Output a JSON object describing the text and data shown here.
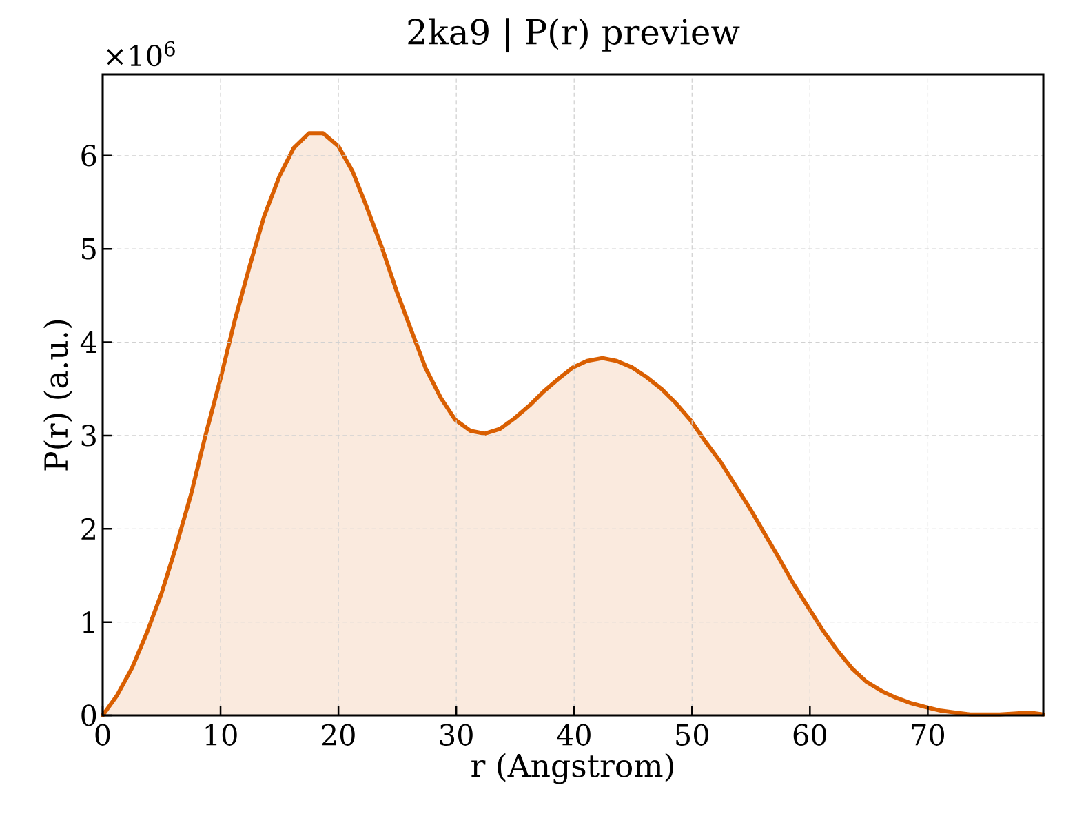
{
  "chart_data": {
    "type": "area",
    "title": "2ka9 | P(r) preview",
    "xlabel": "r (Angstrom)",
    "ylabel": "P(r) (a.u.)",
    "annotations": [
      "×10$^{6}$"
    ],
    "x": [
      0,
      1.2,
      2.5,
      3.7,
      5.0,
      6.2,
      7.5,
      8.7,
      10.0,
      11.2,
      12.5,
      13.7,
      15.0,
      16.2,
      17.5,
      18.7,
      20.0,
      21.2,
      22.4,
      23.7,
      24.9,
      26.2,
      27.4,
      28.7,
      29.9,
      31.2,
      32.4,
      33.7,
      34.9,
      36.2,
      37.4,
      38.7,
      39.9,
      41.1,
      42.4,
      43.6,
      44.9,
      46.1,
      47.4,
      48.6,
      49.9,
      51.1,
      52.4,
      53.6,
      54.9,
      56.1,
      57.4,
      58.6,
      59.9,
      61.1,
      62.3,
      63.6,
      64.8,
      66.1,
      67.3,
      68.6,
      69.8,
      71.1,
      72.3,
      73.6,
      74.8,
      76.1,
      77.3,
      78.6,
      79.8
    ],
    "values": [
      0,
      0.21,
      0.51,
      0.87,
      1.31,
      1.8,
      2.37,
      2.99,
      3.61,
      4.23,
      4.83,
      5.35,
      5.78,
      6.08,
      6.24,
      6.24,
      6.1,
      5.83,
      5.45,
      5.01,
      4.56,
      4.12,
      3.72,
      3.4,
      3.17,
      3.05,
      3.02,
      3.07,
      3.18,
      3.32,
      3.47,
      3.61,
      3.73,
      3.8,
      3.83,
      3.8,
      3.73,
      3.63,
      3.5,
      3.35,
      3.16,
      2.94,
      2.72,
      2.48,
      2.22,
      1.96,
      1.68,
      1.41,
      1.15,
      0.91,
      0.7,
      0.5,
      0.36,
      0.26,
      0.19,
      0.13,
      0.09,
      0.05,
      0.03,
      0.01,
      0.01,
      0.01,
      0.02,
      0.03,
      0.01
    ],
    "color": "#d95f02",
    "xlim": [
      0,
      79.8
    ],
    "ylim": [
      0,
      6.87
    ],
    "xticks": [
      0,
      10,
      20,
      30,
      40,
      50,
      60,
      70
    ],
    "yticks": [
      0,
      1,
      2,
      3,
      4,
      5,
      6
    ],
    "grid": true
  }
}
